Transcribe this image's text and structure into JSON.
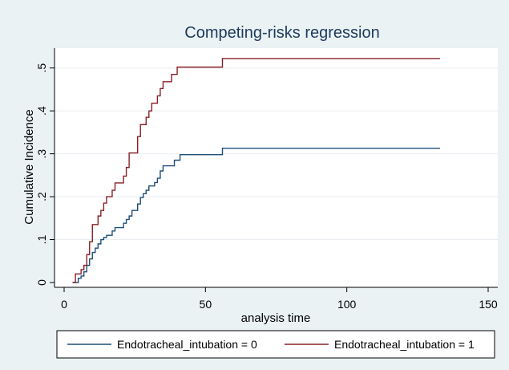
{
  "chart_data": {
    "type": "line",
    "title": "Competing-risks regression",
    "xlabel": "analysis time",
    "ylabel": "Cumulative Incidence",
    "xlim": [
      0,
      150
    ],
    "ylim": [
      0,
      0.52
    ],
    "x_ticks": [
      0,
      50,
      100,
      150
    ],
    "x_tick_labels": [
      "0",
      "50",
      "100",
      "150"
    ],
    "y_ticks": [
      0,
      0.1,
      0.2,
      0.3,
      0.4,
      0.5
    ],
    "y_tick_labels": [
      "0",
      ".1",
      ".2",
      ".3",
      ".4",
      ".5"
    ],
    "grid": "horizontal",
    "legend_position": "bottom",
    "step": true,
    "series": [
      {
        "name": "Endotracheal_intubation = 0",
        "color": "#1f4e79",
        "points": [
          [
            3,
            0
          ],
          [
            5,
            0.01
          ],
          [
            6,
            0.015
          ],
          [
            7,
            0.025
          ],
          [
            8,
            0.04
          ],
          [
            9,
            0.055
          ],
          [
            10,
            0.07
          ],
          [
            11,
            0.08
          ],
          [
            12,
            0.09
          ],
          [
            13,
            0.1
          ],
          [
            14,
            0.105
          ],
          [
            15,
            0.11
          ],
          [
            17,
            0.12
          ],
          [
            18,
            0.128
          ],
          [
            21,
            0.138
          ],
          [
            22,
            0.147
          ],
          [
            23,
            0.155
          ],
          [
            24,
            0.168
          ],
          [
            26,
            0.183
          ],
          [
            27,
            0.198
          ],
          [
            28,
            0.207
          ],
          [
            29,
            0.215
          ],
          [
            30,
            0.225
          ],
          [
            32,
            0.233
          ],
          [
            33,
            0.243
          ],
          [
            34,
            0.26
          ],
          [
            35,
            0.272
          ],
          [
            39,
            0.285
          ],
          [
            41,
            0.298
          ],
          [
            56,
            0.313
          ],
          [
            133,
            0.313
          ]
        ]
      },
      {
        "name": "Endotracheal_intubation = 1",
        "color": "#8b2026",
        "points": [
          [
            3,
            0
          ],
          [
            4,
            0.02
          ],
          [
            6,
            0.03
          ],
          [
            7,
            0.04
          ],
          [
            8,
            0.065
          ],
          [
            9,
            0.095
          ],
          [
            10,
            0.135
          ],
          [
            12,
            0.155
          ],
          [
            13,
            0.168
          ],
          [
            14,
            0.185
          ],
          [
            15,
            0.2
          ],
          [
            17,
            0.215
          ],
          [
            18,
            0.232
          ],
          [
            21,
            0.248
          ],
          [
            22,
            0.268
          ],
          [
            23,
            0.302
          ],
          [
            26,
            0.34
          ],
          [
            27,
            0.368
          ],
          [
            29,
            0.385
          ],
          [
            30,
            0.4
          ],
          [
            31,
            0.418
          ],
          [
            33,
            0.435
          ],
          [
            34,
            0.452
          ],
          [
            35,
            0.468
          ],
          [
            38,
            0.485
          ],
          [
            40,
            0.502
          ],
          [
            56,
            0.522
          ],
          [
            133,
            0.522
          ]
        ]
      }
    ]
  }
}
